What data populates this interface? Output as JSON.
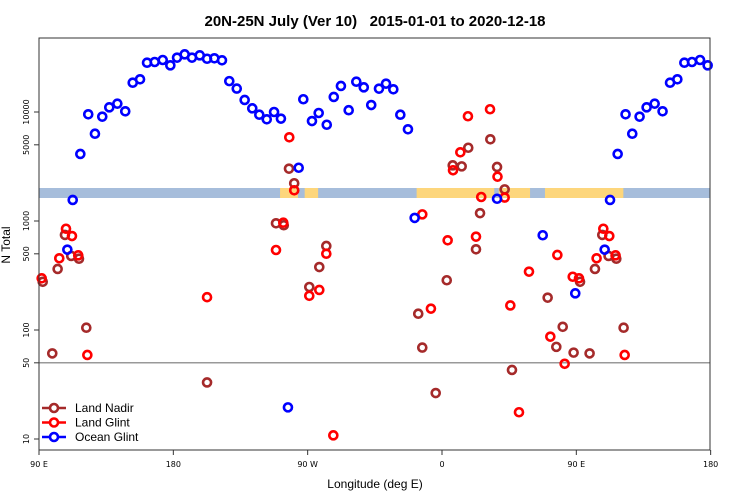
{
  "chart_data": {
    "type": "scatter",
    "title": "20N-25N July (Ver 10)   2015-01-01 to 2020-12-18",
    "xlabel": "Longitude (deg E)",
    "ylabel": "N Total",
    "yscale": "log",
    "ylim": [
      8,
      49000
    ],
    "xlim_unwrapped_deg": [
      90,
      540
    ],
    "x_ticks": [
      {
        "u": 90,
        "label": "90 E"
      },
      {
        "u": 180,
        "label": "180"
      },
      {
        "u": 270,
        "label": "90 W"
      },
      {
        "u": 360,
        "label": "0"
      },
      {
        "u": 450,
        "label": "90 E"
      },
      {
        "u": 540,
        "label": "180"
      }
    ],
    "y_ticks": [
      {
        "v": 10,
        "label": "10"
      },
      {
        "v": 50,
        "label": "50"
      },
      {
        "v": 100,
        "label": "100"
      },
      {
        "v": 500,
        "label": "500"
      },
      {
        "v": 1000,
        "label": "1000"
      },
      {
        "v": 5000,
        "label": "5000"
      },
      {
        "v": 10000,
        "label": "10000"
      }
    ],
    "reference_line": 50,
    "map_strip": {
      "ocean_color": "#a6bddb",
      "land_color": "#fdd67c",
      "land_lon_ranges": [
        [
          -108.5,
          -96.5
        ],
        [
          -92,
          -83
        ],
        [
          -17,
          35
        ],
        [
          38,
          59
        ],
        [
          69,
          121.5
        ]
      ]
    },
    "legend": {
      "placement": "bottom-left"
    },
    "series": [
      {
        "name": "Land Nadir",
        "color": "#a52a2a",
        "points": [
          [
            92.5,
            277
          ],
          [
            98.9,
            61
          ],
          [
            102.5,
            363
          ],
          [
            107.4,
            745
          ],
          [
            111.6,
            478
          ],
          [
            116.8,
            451
          ],
          [
            121.7,
            105
          ],
          [
            -157.4,
            33
          ],
          [
            -111.2,
            953
          ],
          [
            -106,
            914
          ],
          [
            -102.5,
            3020
          ],
          [
            -99,
            2220
          ],
          [
            -88.9,
            248
          ],
          [
            -82.2,
            378
          ],
          [
            -77.5,
            590
          ],
          [
            -15.9,
            141
          ],
          [
            -13.2,
            69
          ],
          [
            -4.2,
            26.4
          ],
          [
            3.2,
            286
          ],
          [
            7.2,
            3240
          ],
          [
            13.2,
            3170
          ],
          [
            17.6,
            4700
          ],
          [
            22.8,
            550
          ],
          [
            25.5,
            1180
          ],
          [
            32.4,
            5620
          ],
          [
            36.9,
            3130
          ],
          [
            42,
            1950
          ],
          [
            46.9,
            43
          ],
          [
            70.8,
            198
          ],
          [
            76.6,
            70
          ],
          [
            80.9,
            107
          ],
          [
            88.2,
            62
          ]
        ]
      },
      {
        "name": "Land Glint",
        "color": "#ff0000",
        "points": [
          [
            91.8,
            298
          ],
          [
            103.6,
            455
          ],
          [
            108.1,
            849
          ],
          [
            112.1,
            728
          ],
          [
            116.3,
            484
          ],
          [
            122.4,
            59
          ],
          [
            -157.4,
            200
          ],
          [
            -111.2,
            542
          ],
          [
            -106.3,
            964
          ],
          [
            -102.3,
            5860
          ],
          [
            -99,
            1913
          ],
          [
            -88.9,
            206
          ],
          [
            -82.2,
            233
          ],
          [
            -77.5,
            501
          ],
          [
            -72.8,
            10.8
          ],
          [
            -13.2,
            1150
          ],
          [
            -7.4,
            157
          ],
          [
            3.8,
            665
          ],
          [
            7.4,
            2920
          ],
          [
            12.3,
            4270
          ],
          [
            17.4,
            9140
          ],
          [
            22.8,
            718
          ],
          [
            26.3,
            1660
          ],
          [
            32.2,
            10600
          ],
          [
            37.2,
            2550
          ],
          [
            42,
            1640
          ],
          [
            45.8,
            168
          ],
          [
            51.6,
            17.6
          ],
          [
            58.3,
            343
          ],
          [
            72.6,
            86.9
          ],
          [
            77.3,
            488
          ],
          [
            82.2,
            49
          ],
          [
            87.6,
            308
          ]
        ]
      },
      {
        "name": "Ocean Glint",
        "color": "#0000ff",
        "points": [
          [
            109,
            546
          ],
          [
            112.6,
            1560
          ],
          [
            117.7,
            4120
          ],
          [
            123,
            9530
          ],
          [
            127.5,
            6320
          ],
          [
            132.4,
            9060
          ],
          [
            137.1,
            11040
          ],
          [
            142.5,
            11920
          ],
          [
            147.8,
            10150
          ],
          [
            152.8,
            18570
          ],
          [
            157.7,
            19950
          ],
          [
            162.4,
            28330
          ],
          [
            167.5,
            28760
          ],
          [
            172.9,
            30000
          ],
          [
            178,
            26800
          ],
          [
            -177.5,
            31500
          ],
          [
            -172.4,
            33800
          ],
          [
            -167.5,
            31500
          ],
          [
            -162.3,
            33100
          ],
          [
            -157.4,
            30800
          ],
          [
            -152.5,
            31100
          ],
          [
            -147.4,
            29800
          ],
          [
            -142.5,
            19200
          ],
          [
            -137.5,
            16400
          ],
          [
            -132.2,
            12900
          ],
          [
            -127.1,
            10800
          ],
          [
            -122.4,
            9440
          ],
          [
            -117.4,
            8570
          ],
          [
            -112.5,
            10000
          ],
          [
            -107.9,
            8690
          ],
          [
            -103.2,
            19.5
          ],
          [
            -96,
            3080
          ],
          [
            -92.9,
            13090
          ],
          [
            -87.1,
            8260
          ],
          [
            -82.6,
            9790
          ],
          [
            -77.2,
            7640
          ],
          [
            -72.5,
            13740
          ],
          [
            -67.7,
            17330
          ],
          [
            -62.5,
            10380
          ],
          [
            -57.4,
            18970
          ],
          [
            -52.4,
            16830
          ],
          [
            -47.4,
            11590
          ],
          [
            -42.2,
            16370
          ],
          [
            -37.5,
            18200
          ],
          [
            -32.6,
            16150
          ],
          [
            -27.9,
            9440
          ],
          [
            -22.8,
            6940
          ],
          [
            -18.3,
            1067
          ],
          [
            36.9,
            1600
          ],
          [
            67.5,
            740
          ],
          [
            89.3,
            217
          ]
        ]
      }
    ]
  }
}
